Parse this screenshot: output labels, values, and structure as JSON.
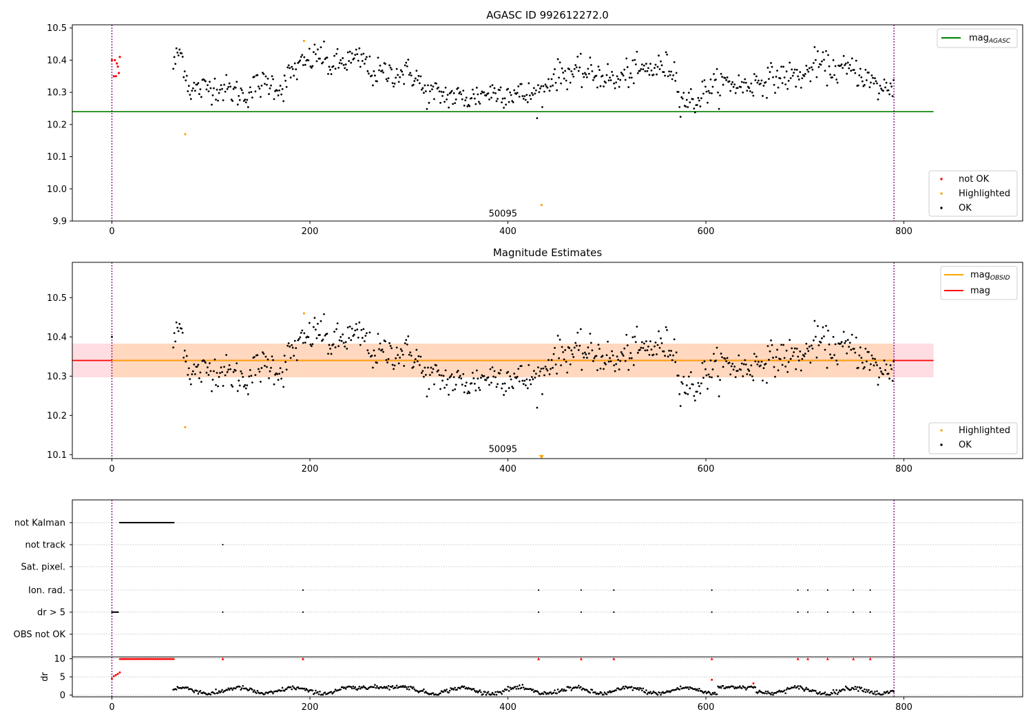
{
  "chart_data": [
    {
      "type": "scatter",
      "title": "AGASC ID 992612272.0",
      "xlim": [
        -40,
        920
      ],
      "ylim": [
        9.9,
        10.51
      ],
      "xticks": [
        0,
        200,
        400,
        600,
        800
      ],
      "yticks": [
        9.9,
        10.0,
        10.1,
        10.2,
        10.3,
        10.4,
        10.5
      ],
      "ytick_labels": [
        "9.9",
        "10.0",
        "10.1",
        "10.2",
        "10.3",
        "10.4",
        "10.5"
      ],
      "vlines": [
        0,
        790
      ],
      "hlines": [
        {
          "y": 10.24,
          "x0": -40,
          "x1": 830,
          "color": "#008000",
          "label": "mag_AGASC"
        }
      ],
      "annotations": [
        {
          "text": "50095",
          "x": 395,
          "y": 9.925
        }
      ],
      "legend_lines": [
        {
          "name": "mag",
          "sub": "AGASC",
          "color": "#008000"
        }
      ],
      "legend_points": [
        {
          "name": "not OK",
          "color": "#ff0000"
        },
        {
          "name": "Highlighted",
          "color": "#ffa500"
        },
        {
          "name": "OK",
          "color": "#000000"
        }
      ],
      "special_points": {
        "not_ok": [
          [
            0,
            10.4
          ],
          [
            2,
            10.35
          ],
          [
            3,
            10.4
          ],
          [
            4,
            10.35
          ],
          [
            5,
            10.39
          ],
          [
            6,
            10.38
          ],
          [
            7,
            10.36
          ],
          [
            8,
            10.41
          ]
        ],
        "highlighted": [
          [
            74,
            10.17
          ],
          [
            194,
            10.46
          ],
          [
            434,
            9.95
          ]
        ]
      },
      "ok_series": {
        "x_start": 62,
        "x_end": 790,
        "segments": [
          [
            62,
            10.38
          ],
          [
            68,
            10.43
          ],
          [
            72,
            10.4
          ],
          [
            78,
            10.31
          ],
          [
            90,
            10.31
          ],
          [
            100,
            10.32
          ],
          [
            115,
            10.31
          ],
          [
            125,
            10.3
          ],
          [
            135,
            10.29
          ],
          [
            145,
            10.32
          ],
          [
            160,
            10.33
          ],
          [
            172,
            10.31
          ],
          [
            180,
            10.36
          ],
          [
            190,
            10.38
          ],
          [
            200,
            10.4
          ],
          [
            210,
            10.42
          ],
          [
            220,
            10.38
          ],
          [
            240,
            10.4
          ],
          [
            255,
            10.4
          ],
          [
            262,
            10.36
          ],
          [
            280,
            10.36
          ],
          [
            300,
            10.36
          ],
          [
            308,
            10.35
          ],
          [
            315,
            10.3
          ],
          [
            340,
            10.29
          ],
          [
            360,
            10.28
          ],
          [
            380,
            10.3
          ],
          [
            400,
            10.3
          ],
          [
            420,
            10.29
          ],
          [
            435,
            10.3
          ],
          [
            445,
            10.35
          ],
          [
            460,
            10.36
          ],
          [
            480,
            10.36
          ],
          [
            500,
            10.35
          ],
          [
            510,
            10.33
          ],
          [
            520,
            10.36
          ],
          [
            540,
            10.37
          ],
          [
            560,
            10.38
          ],
          [
            568,
            10.37
          ],
          [
            575,
            10.28
          ],
          [
            590,
            10.27
          ],
          [
            600,
            10.31
          ],
          [
            620,
            10.33
          ],
          [
            640,
            10.32
          ],
          [
            660,
            10.34
          ],
          [
            680,
            10.35
          ],
          [
            700,
            10.35
          ],
          [
            710,
            10.39
          ],
          [
            730,
            10.37
          ],
          [
            750,
            10.37
          ],
          [
            760,
            10.35
          ],
          [
            775,
            10.31
          ],
          [
            790,
            10.32
          ]
        ]
      }
    },
    {
      "type": "scatter",
      "title": "Magnitude Estimates",
      "xlim": [
        -40,
        920
      ],
      "ylim": [
        10.09,
        10.59
      ],
      "xticks": [
        0,
        200,
        400,
        600,
        800
      ],
      "yticks": [
        10.1,
        10.2,
        10.3,
        10.4,
        10.5
      ],
      "ytick_labels": [
        "10.1",
        "10.2",
        "10.3",
        "10.4",
        "10.5"
      ],
      "vlines": [
        0,
        790
      ],
      "band": {
        "y0": 10.297,
        "y1": 10.383,
        "x0": -40,
        "x1": 830
      },
      "obsid_band": {
        "y0": 10.297,
        "y1": 10.383,
        "x0": 0,
        "x1": 790
      },
      "hlines": [
        {
          "y": 10.34,
          "x0": -40,
          "x1": 830,
          "color": "#ff0000",
          "label": "mag"
        },
        {
          "y": 10.34,
          "x0": 0,
          "x1": 790,
          "color": "#ffa500",
          "label": "mag_OBSID"
        }
      ],
      "annotations": [
        {
          "text": "50095",
          "x": 395,
          "y": 10.105
        }
      ],
      "legend_lines": [
        {
          "name": "mag",
          "sub": "OBSID",
          "color": "#ffa500"
        },
        {
          "name": "mag",
          "sub": "",
          "color": "#ff0000"
        }
      ],
      "legend_points": [
        {
          "name": "Highlighted",
          "color": "#ffa500"
        },
        {
          "name": "OK",
          "color": "#000000"
        }
      ],
      "special_points": {
        "highlighted": [
          [
            74,
            10.17
          ],
          [
            194,
            10.46
          ]
        ],
        "clipped_marker": [
          [
            434,
            10.094
          ]
        ]
      }
    },
    {
      "type": "scatter",
      "categories": [
        "not Kalman",
        "not track",
        "Sat. pixel.",
        "Ion. rad.",
        "dr > 5",
        "OBS not OK"
      ],
      "flags": {
        "not Kalman": {
          "ranges": [
            [
              8,
              63
            ]
          ],
          "points": []
        },
        "not track": {
          "ranges": [],
          "points": [
            112
          ]
        },
        "Sat. pixel.": {
          "ranges": [],
          "points": []
        },
        "Ion. rad.": {
          "ranges": [],
          "points": [
            193,
            431,
            474,
            507,
            606,
            693,
            703,
            723,
            749,
            766
          ]
        },
        "dr > 5": {
          "ranges": [
            [
              0,
              7
            ]
          ],
          "points": [
            112,
            193,
            431,
            474,
            507,
            606,
            693,
            703,
            723,
            749,
            766
          ]
        },
        "OBS not OK": {
          "ranges": [],
          "points": []
        }
      },
      "dr": {
        "ylabel": "dr",
        "ylim": [
          -0.5,
          10.5
        ],
        "yticks": [
          0,
          5,
          10
        ],
        "clipped_ranges": [
          [
            8,
            63
          ]
        ],
        "clipped_points": [
          112,
          193,
          431,
          474,
          507,
          606,
          693,
          703,
          723,
          749,
          766
        ],
        "red_points": [
          [
            0,
            4.5
          ],
          [
            2,
            5.2
          ],
          [
            4,
            5.5
          ],
          [
            6,
            5.8
          ],
          [
            8,
            6.2
          ],
          [
            606,
            4.2
          ],
          [
            648,
            3.2
          ]
        ]
      },
      "xticks": [
        0,
        200,
        400,
        600,
        800
      ],
      "xlim": [
        -40,
        920
      ]
    }
  ]
}
